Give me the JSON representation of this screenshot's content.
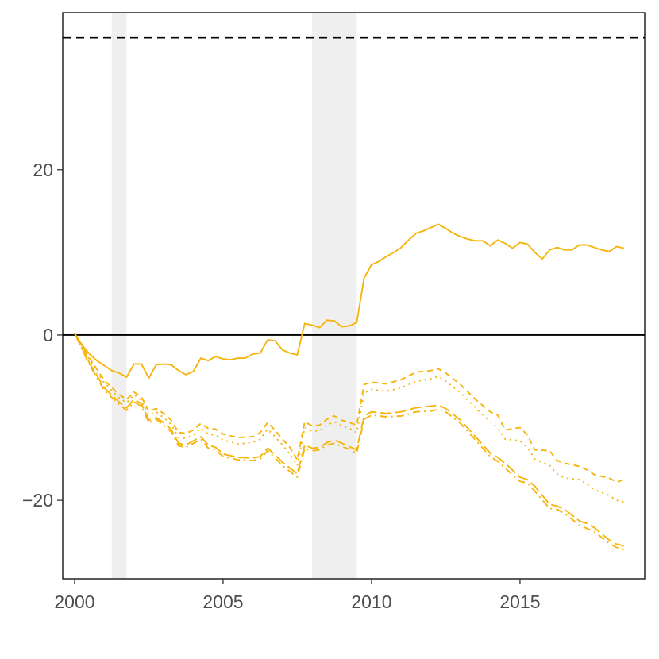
{
  "chart_data": {
    "type": "line",
    "title": "",
    "xlabel": "",
    "ylabel": "",
    "xlim": [
      1999.6,
      2019.2
    ],
    "ylim": [
      -29.5,
      39
    ],
    "x_ticks": [
      2000,
      2005,
      2010,
      2015
    ],
    "x_tick_labels": [
      "2000",
      "2005",
      "2010",
      "2015"
    ],
    "y_ticks": [
      -20,
      0,
      20
    ],
    "y_tick_labels": [
      "−20",
      "0",
      "20"
    ],
    "grid": false,
    "legend": "none",
    "series_color": "#F5B50E",
    "recession_shading": [
      [
        2001.25,
        2001.75
      ],
      [
        2008.0,
        2009.5
      ]
    ],
    "recession_color": "#EFEFEF",
    "reference_lines": [
      {
        "y": 0,
        "style": "solid",
        "color": "#000000"
      },
      {
        "y": 36,
        "style": "dashed",
        "color": "#000000"
      }
    ],
    "series": [
      {
        "style": "solid",
        "x": [
          2000,
          2000.25,
          2000.5,
          2000.75,
          2001,
          2001.25,
          2001.5,
          2001.75,
          2002,
          2002.25,
          2002.5,
          2002.75,
          2003,
          2003.25,
          2003.5,
          2003.75,
          2004,
          2004.25,
          2004.5,
          2004.75,
          2005,
          2005.25,
          2005.5,
          2005.75,
          2006,
          2006.25,
          2006.5,
          2006.75,
          2007,
          2007.25,
          2007.5,
          2007.75,
          2008,
          2008.25,
          2008.5,
          2008.75,
          2009,
          2009.25,
          2009.5,
          2009.75,
          2010,
          2010.25,
          2010.5,
          2010.75,
          2011,
          2011.25,
          2011.5,
          2011.75,
          2012,
          2012.25,
          2012.5,
          2012.75,
          2013,
          2013.25,
          2013.5,
          2013.75,
          2014,
          2014.25,
          2014.5,
          2014.75,
          2015,
          2015.25,
          2015.5,
          2015.75,
          2016,
          2016.25,
          2016.5,
          2016.75,
          2017,
          2017.25,
          2017.5,
          2017.75,
          2018,
          2018.25,
          2018.5
        ],
        "values": [
          0.2,
          -1.2,
          -2.3,
          -3.1,
          -3.7,
          -4.3,
          -4.6,
          -5.1,
          -3.5,
          -3.5,
          -5.2,
          -3.6,
          -3.5,
          -3.6,
          -4.3,
          -4.8,
          -4.4,
          -2.8,
          -3.1,
          -2.6,
          -2.9,
          -3.0,
          -2.8,
          -2.8,
          -2.3,
          -2.2,
          -0.6,
          -0.7,
          -1.8,
          -2.2,
          -2.4,
          1.4,
          1.2,
          0.9,
          1.8,
          1.7,
          1.0,
          1.1,
          1.5,
          6.9,
          8.5,
          8.9,
          9.5,
          10.0,
          10.6,
          11.5,
          12.3,
          12.6,
          13.0,
          13.4,
          12.9,
          12.3,
          11.9,
          11.6,
          11.4,
          11.4,
          10.8,
          11.5,
          11.1,
          10.5,
          11.2,
          11.0,
          10.0,
          9.2,
          10.3,
          10.6,
          10.3,
          10.3,
          10.9,
          10.9,
          10.6,
          10.3,
          10.1,
          10.7,
          10.5
        ]
      },
      {
        "style": "dashed",
        "x": [
          2000,
          2000.5,
          2001,
          2001.5,
          2001.75,
          2002,
          2002.25,
          2002.5,
          2002.75,
          2003,
          2003.25,
          2003.5,
          2003.75,
          2004,
          2004.25,
          2004.5,
          2004.75,
          2005,
          2005.5,
          2006,
          2006.25,
          2006.5,
          2006.75,
          2007,
          2007.25,
          2007.5,
          2007.75,
          2008,
          2008.25,
          2008.5,
          2008.75,
          2009,
          2009.25,
          2009.5,
          2009.75,
          2010,
          2010.5,
          2011,
          2011.5,
          2012,
          2012.25,
          2012.5,
          2013,
          2013.5,
          2014,
          2014.25,
          2014.5,
          2015,
          2015.25,
          2015.5,
          2016,
          2016.25,
          2016.5,
          2017,
          2017.25,
          2017.5,
          2018,
          2018.25,
          2018.5
        ],
        "values": [
          0.2,
          -2.8,
          -5.5,
          -7.2,
          -7.8,
          -6.9,
          -7.5,
          -9.2,
          -8.9,
          -9.5,
          -10.3,
          -11.8,
          -11.9,
          -11.5,
          -10.7,
          -11.3,
          -11.4,
          -12.0,
          -12.4,
          -12.3,
          -11.8,
          -10.6,
          -11.5,
          -12.6,
          -13.6,
          -15.1,
          -10.5,
          -11.0,
          -10.9,
          -10.2,
          -9.8,
          -10.3,
          -10.6,
          -10.9,
          -6.0,
          -5.7,
          -5.9,
          -5.4,
          -4.5,
          -4.3,
          -4.1,
          -4.6,
          -6.0,
          -7.8,
          -9.3,
          -9.7,
          -11.5,
          -11.2,
          -12.1,
          -13.9,
          -14.0,
          -15.2,
          -15.5,
          -15.9,
          -16.3,
          -16.9,
          -17.3,
          -17.8,
          -17.5
        ]
      },
      {
        "style": "dotted",
        "x": [
          2000,
          2000.5,
          2001,
          2001.5,
          2001.75,
          2002,
          2002.25,
          2002.5,
          2002.75,
          2003,
          2003.25,
          2003.5,
          2003.75,
          2004,
          2004.25,
          2004.5,
          2004.75,
          2005,
          2005.5,
          2006,
          2006.25,
          2006.5,
          2006.75,
          2007,
          2007.25,
          2007.5,
          2007.75,
          2008,
          2008.25,
          2008.5,
          2008.75,
          2009,
          2009.25,
          2009.5,
          2009.75,
          2010,
          2010.5,
          2011,
          2011.5,
          2012,
          2012.25,
          2012.5,
          2013,
          2013.5,
          2014,
          2014.25,
          2014.5,
          2015,
          2015.25,
          2015.5,
          2016,
          2016.25,
          2016.5,
          2017,
          2017.25,
          2017.5,
          2018,
          2018.25,
          2018.5
        ],
        "values": [
          0.2,
          -3.0,
          -5.8,
          -7.6,
          -8.2,
          -7.2,
          -7.9,
          -9.7,
          -9.3,
          -10.0,
          -10.8,
          -12.4,
          -12.5,
          -12.1,
          -11.3,
          -12.0,
          -12.1,
          -12.7,
          -13.2,
          -13.0,
          -12.6,
          -11.4,
          -12.3,
          -13.3,
          -14.4,
          -15.8,
          -11.2,
          -11.6,
          -11.6,
          -10.9,
          -10.5,
          -11.0,
          -11.3,
          -11.8,
          -7.0,
          -6.6,
          -6.8,
          -6.4,
          -5.6,
          -5.3,
          -5.0,
          -5.6,
          -7.0,
          -8.8,
          -10.5,
          -11.2,
          -12.6,
          -12.8,
          -13.6,
          -15.0,
          -15.8,
          -16.8,
          -17.3,
          -17.5,
          -18.0,
          -18.7,
          -19.4,
          -20.0,
          -20.2
        ]
      },
      {
        "style": "longdash",
        "x": [
          2000,
          2000.5,
          2001,
          2001.5,
          2001.75,
          2002,
          2002.25,
          2002.5,
          2002.75,
          2003,
          2003.25,
          2003.5,
          2003.75,
          2004,
          2004.25,
          2004.5,
          2004.75,
          2005,
          2005.5,
          2006,
          2006.25,
          2006.5,
          2006.75,
          2007,
          2007.25,
          2007.5,
          2007.75,
          2008,
          2008.25,
          2008.5,
          2008.75,
          2009,
          2009.25,
          2009.5,
          2009.75,
          2010,
          2010.5,
          2011,
          2011.5,
          2012,
          2012.25,
          2012.5,
          2013,
          2013.5,
          2014,
          2014.25,
          2014.5,
          2015,
          2015.25,
          2015.5,
          2016,
          2016.25,
          2016.5,
          2017,
          2017.25,
          2017.5,
          2018,
          2018.25,
          2018.5
        ],
        "values": [
          0.2,
          -3.4,
          -6.4,
          -8.1,
          -8.8,
          -7.8,
          -8.3,
          -10.3,
          -10.0,
          -10.6,
          -11.4,
          -13.1,
          -13.3,
          -12.8,
          -12.3,
          -13.3,
          -13.6,
          -14.4,
          -14.8,
          -14.9,
          -14.7,
          -13.7,
          -14.5,
          -15.4,
          -16.1,
          -16.8,
          -13.3,
          -13.7,
          -13.6,
          -13.0,
          -12.7,
          -13.1,
          -13.5,
          -13.9,
          -9.8,
          -9.3,
          -9.5,
          -9.3,
          -8.8,
          -8.6,
          -8.5,
          -8.9,
          -10.3,
          -12.3,
          -14.3,
          -14.8,
          -15.5,
          -17.2,
          -17.5,
          -18.3,
          -20.5,
          -20.7,
          -21.1,
          -22.5,
          -22.8,
          -23.3,
          -24.8,
          -25.3,
          -25.5
        ]
      },
      {
        "style": "dotdash",
        "x": [
          2000,
          2000.5,
          2001,
          2001.5,
          2001.75,
          2002,
          2002.25,
          2002.5,
          2002.75,
          2003,
          2003.25,
          2003.5,
          2003.75,
          2004,
          2004.25,
          2004.5,
          2004.75,
          2005,
          2005.5,
          2006,
          2006.25,
          2006.5,
          2006.75,
          2007,
          2007.25,
          2007.5,
          2007.75,
          2008,
          2008.25,
          2008.5,
          2008.75,
          2009,
          2009.25,
          2009.5,
          2009.75,
          2010,
          2010.5,
          2011,
          2011.5,
          2012,
          2012.25,
          2012.5,
          2013,
          2013.5,
          2014,
          2014.25,
          2014.5,
          2015,
          2015.25,
          2015.5,
          2016,
          2016.25,
          2016.5,
          2017,
          2017.25,
          2017.5,
          2018,
          2018.25,
          2018.5
        ],
        "values": [
          0.2,
          -3.6,
          -6.7,
          -8.4,
          -9.1,
          -8.1,
          -8.6,
          -10.6,
          -10.2,
          -10.9,
          -11.7,
          -13.4,
          -13.6,
          -13.1,
          -12.6,
          -13.7,
          -13.9,
          -14.7,
          -15.1,
          -15.2,
          -15.0,
          -14.0,
          -14.9,
          -15.8,
          -16.5,
          -17.2,
          -13.7,
          -14.0,
          -13.9,
          -13.3,
          -13.1,
          -13.5,
          -13.8,
          -14.3,
          -10.2,
          -9.7,
          -9.9,
          -9.8,
          -9.3,
          -9.2,
          -9.0,
          -9.3,
          -10.7,
          -12.7,
          -14.7,
          -15.3,
          -16.1,
          -17.7,
          -17.9,
          -18.9,
          -21.0,
          -21.1,
          -21.6,
          -23.0,
          -23.4,
          -23.8,
          -25.2,
          -25.7,
          -26.0
        ]
      }
    ]
  }
}
